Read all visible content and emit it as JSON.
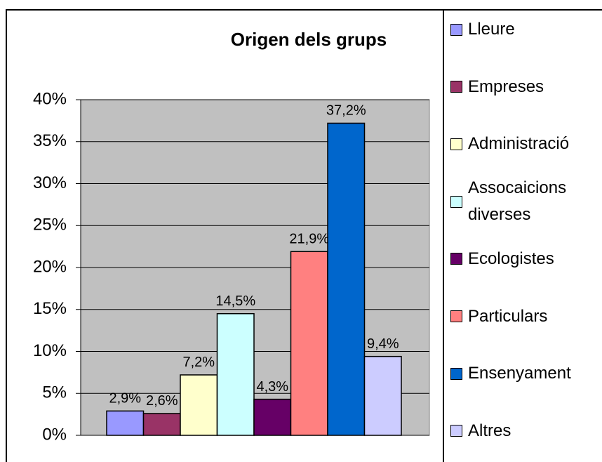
{
  "chart_data": {
    "type": "bar",
    "title": "Origen dels grups",
    "series": [
      {
        "name": "Lleure",
        "color": "#9999ff",
        "values": [
          2.9
        ],
        "value_labels": [
          "2,9%"
        ]
      },
      {
        "name": "Empreses",
        "color": "#993366",
        "values": [
          2.6
        ],
        "value_labels": [
          "2,6%"
        ]
      },
      {
        "name": "Administració",
        "color": "#ffffcc",
        "values": [
          7.2
        ],
        "value_labels": [
          "7,2%"
        ]
      },
      {
        "name": "Assocaicions diverses",
        "color": "#ccffff",
        "values": [
          14.5
        ],
        "value_labels": [
          "14,5%"
        ]
      },
      {
        "name": "Ecologistes",
        "color": "#660066",
        "values": [
          4.3
        ],
        "value_labels": [
          "4,3%"
        ]
      },
      {
        "name": "Particulars",
        "color": "#ff8080",
        "values": [
          21.9
        ],
        "value_labels": [
          "21,9%"
        ]
      },
      {
        "name": "Ensenyament",
        "color": "#0066cc",
        "values": [
          37.2
        ],
        "value_labels": [
          "37,2%"
        ]
      },
      {
        "name": "Altres",
        "color": "#ccccff",
        "values": [
          9.4
        ],
        "value_labels": [
          "9,4%"
        ]
      }
    ],
    "ylim": [
      0,
      40
    ],
    "yticks": [
      {
        "value": 0,
        "label": "0%"
      },
      {
        "value": 5,
        "label": "5%"
      },
      {
        "value": 10,
        "label": "10%"
      },
      {
        "value": 15,
        "label": "15%"
      },
      {
        "value": 20,
        "label": "20%"
      },
      {
        "value": 25,
        "label": "25%"
      },
      {
        "value": 30,
        "label": "30%"
      },
      {
        "value": 35,
        "label": "35%"
      },
      {
        "value": 40,
        "label": "40%"
      }
    ],
    "grid": true,
    "plot_background": "#c0c0c0",
    "legend": "right"
  }
}
